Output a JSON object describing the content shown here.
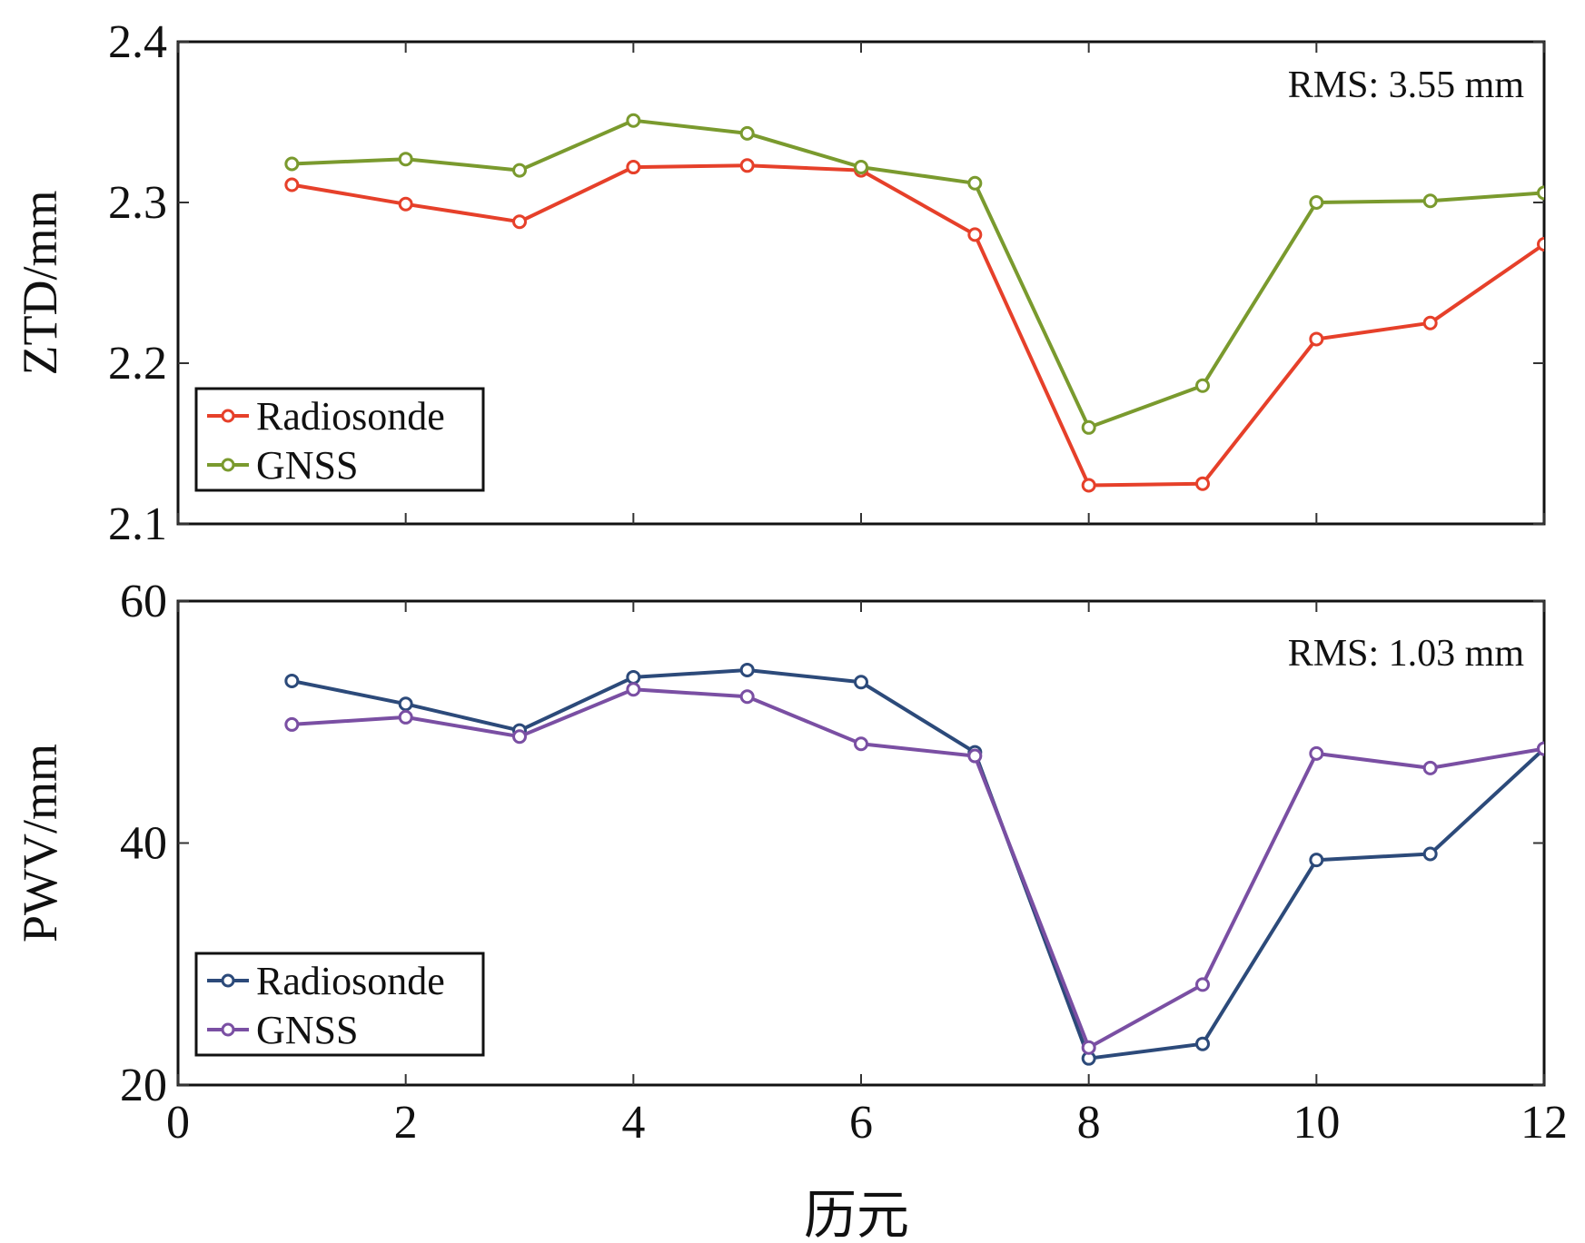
{
  "chart_data": [
    {
      "type": "line",
      "ylabel": "ZTD/mm",
      "xlim": [
        0,
        12
      ],
      "ylim": [
        2.1,
        2.4
      ],
      "x_ticks": [
        0,
        2,
        4,
        6,
        8,
        10,
        12
      ],
      "y_ticks": [
        "2.1",
        "2.2",
        "2.3",
        "2.4"
      ],
      "annotation": "RMS: 3.55 mm",
      "legend_position": "bottom-left",
      "x": [
        1,
        2,
        3,
        4,
        5,
        6,
        7,
        8,
        9,
        10,
        11,
        12
      ],
      "series": [
        {
          "name": "Radiosonde",
          "color": "#e6402a",
          "values": [
            2.311,
            2.299,
            2.288,
            2.322,
            2.323,
            2.32,
            2.28,
            2.124,
            2.125,
            2.215,
            2.225,
            2.274
          ]
        },
        {
          "name": "GNSS",
          "color": "#7a9a2e",
          "values": [
            2.324,
            2.327,
            2.32,
            2.351,
            2.343,
            2.322,
            2.312,
            2.16,
            2.186,
            2.3,
            2.301,
            2.306
          ]
        }
      ]
    },
    {
      "type": "line",
      "ylabel": "PWV/mm",
      "xlabel": "历元",
      "xlim": [
        0,
        12
      ],
      "ylim": [
        20,
        60
      ],
      "x_ticks": [
        "0",
        "2",
        "4",
        "6",
        "8",
        "10",
        "12"
      ],
      "y_ticks": [
        "20",
        "40",
        "60"
      ],
      "annotation": "RMS: 1.03 mm",
      "legend_position": "bottom-left",
      "x": [
        1,
        2,
        3,
        4,
        5,
        6,
        7,
        8,
        9,
        10,
        11,
        12
      ],
      "series": [
        {
          "name": "Radiosonde",
          "color": "#2c4a7a",
          "values": [
            53.4,
            51.5,
            49.3,
            53.7,
            54.3,
            53.3,
            47.5,
            22.2,
            23.4,
            38.6,
            39.1,
            47.8
          ]
        },
        {
          "name": "GNSS",
          "color": "#7a4fa3",
          "values": [
            49.8,
            50.4,
            48.8,
            52.7,
            52.1,
            48.2,
            47.2,
            23.1,
            28.3,
            47.4,
            46.2,
            47.8
          ]
        }
      ]
    }
  ]
}
